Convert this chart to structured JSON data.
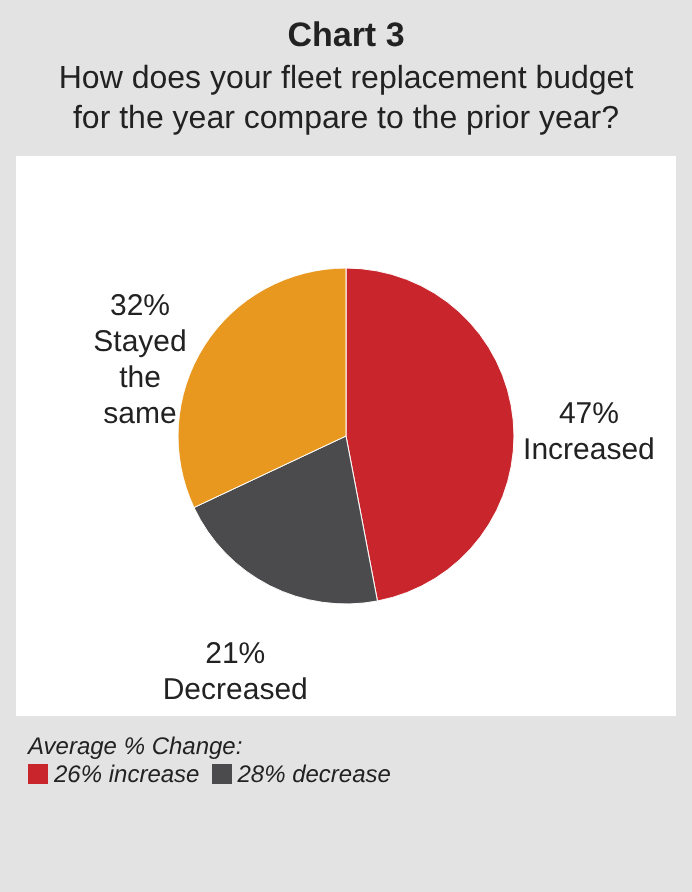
{
  "chart_data": {
    "type": "pie",
    "title": "Chart 3",
    "subtitle": "How does your fleet replacement budget for the year compare to the prior year?",
    "categories": [
      "Increased",
      "Decreased",
      "Stayed the same"
    ],
    "values": [
      47,
      21,
      32
    ],
    "value_labels": [
      "47%",
      "21%",
      "32%"
    ],
    "colors": [
      "#c8252c",
      "#4b4b4d",
      "#e8981f"
    ],
    "annotations": [
      "Average % Change:",
      "26% increase",
      "28% decrease"
    ]
  }
}
